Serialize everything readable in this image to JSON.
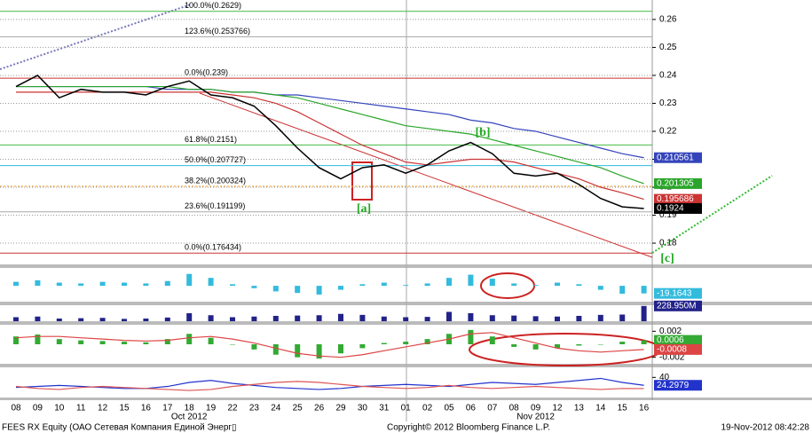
{
  "chart_data": [
    {
      "type": "line",
      "categories": [
        "08",
        "09",
        "10",
        "11",
        "12",
        "15",
        "16",
        "17",
        "18",
        "19",
        "22",
        "23",
        "24",
        "25",
        "26",
        "29",
        "30",
        "31",
        "01",
        "02",
        "05",
        "06",
        "07",
        "08",
        "09",
        "12",
        "13",
        "14",
        "15",
        "16"
      ],
      "months": [
        "Oct 2012",
        "Nov 2012"
      ],
      "ylim": [
        0.1724,
        0.266
      ],
      "yticks": [
        0.18,
        0.19,
        0.2,
        0.21,
        0.22,
        0.23,
        0.24,
        0.25,
        0.26
      ],
      "grid": true,
      "series": [
        {
          "color": "#3344bb",
          "tag": true,
          "values": [
            0.236,
            0.236,
            0.236,
            0.236,
            0.236,
            0.236,
            0.236,
            0.235,
            0.235,
            0.235,
            0.234,
            0.234,
            0.233,
            0.233,
            0.232,
            0.231,
            0.23,
            0.229,
            0.228,
            0.227,
            0.226,
            0.224,
            0.223,
            0.221,
            0.22,
            0.218,
            0.216,
            0.214,
            0.212,
            0.210561
          ]
        },
        {
          "color": "#2aa52a",
          "tag": true,
          "values": [
            0.236,
            0.236,
            0.236,
            0.236,
            0.236,
            0.236,
            0.236,
            0.236,
            0.235,
            0.235,
            0.234,
            0.234,
            0.233,
            0.232,
            0.23,
            0.228,
            0.226,
            0.224,
            0.222,
            0.221,
            0.22,
            0.219,
            0.217,
            0.215,
            0.213,
            0.211,
            0.209,
            0.207,
            0.204,
            0.201305
          ]
        },
        {
          "color": "#cc3333",
          "tag": true,
          "values": [
            0.234,
            0.234,
            0.234,
            0.234,
            0.234,
            0.234,
            0.234,
            0.234,
            0.234,
            0.234,
            0.233,
            0.232,
            0.23,
            0.227,
            0.223,
            0.219,
            0.215,
            0.212,
            0.209,
            0.208,
            0.209,
            0.21,
            0.21,
            0.209,
            0.207,
            0.205,
            0.203,
            0.2,
            0.198,
            0.195686
          ]
        },
        {
          "color": "#000000",
          "tag": true,
          "values": [
            0.236,
            0.24,
            0.232,
            0.235,
            0.234,
            0.234,
            0.233,
            0.236,
            0.238,
            0.233,
            0.232,
            0.229,
            0.222,
            0.214,
            0.207,
            0.203,
            0.207,
            0.208,
            0.205,
            0.208,
            0.213,
            0.216,
            0.212,
            0.205,
            0.204,
            0.205,
            0.201,
            0.196,
            0.193,
            0.1924
          ]
        }
      ],
      "levels": [
        {
          "value": 0.2629,
          "label": "100.0%(0.2629)",
          "color": "#44bb44"
        },
        {
          "value": 0.253766,
          "label": "123.6%(0.253766)",
          "color": "#aaaaaa"
        },
        {
          "value": 0.239,
          "label": "0.0%(0.239)",
          "color": "#cc3333"
        },
        {
          "value": 0.2151,
          "label": "61.8%(0.2151)",
          "color": "#44bb44"
        },
        {
          "value": 0.207727,
          "label": "50.0%(0.207727)",
          "color": "#33bbdd"
        },
        {
          "value": 0.200324,
          "label": "38.2%(0.200324)",
          "color": "#ee9922"
        },
        {
          "value": 0.191199,
          "label": "23.6%(0.191199)",
          "color": "#aaaaaa"
        },
        {
          "value": 0.176434,
          "label": "0.0%(0.176434)",
          "color": "#cc3333"
        }
      ],
      "annotations": [
        "[a]",
        "[b]",
        "[c]"
      ]
    },
    {
      "type": "bar",
      "ylim": [
        -40,
        45
      ],
      "series": [
        {
          "color": "#33bbdd",
          "type": "bar",
          "tag": true,
          "values": [
            10,
            14,
            8,
            6,
            10,
            8,
            6,
            12,
            30,
            20,
            4,
            -6,
            -14,
            -18,
            -22,
            -10,
            4,
            8,
            2,
            6,
            20,
            28,
            18,
            6,
            2,
            8,
            4,
            -10,
            -20,
            -19.1643
          ]
        }
      ]
    },
    {
      "type": "bar",
      "ylim": [
        0,
        240
      ],
      "series": [
        {
          "color": "#22228a",
          "type": "bar",
          "tag": true,
          "values": [
            60,
            70,
            40,
            45,
            50,
            35,
            40,
            55,
            120,
            90,
            60,
            70,
            80,
            85,
            90,
            110,
            95,
            70,
            60,
            65,
            140,
            120,
            90,
            85,
            75,
            70,
            80,
            95,
            100,
            228.95
          ],
          "value_labels": [
            null,
            null,
            null,
            null,
            null,
            null,
            null,
            null,
            null,
            null,
            null,
            null,
            null,
            null,
            null,
            null,
            null,
            null,
            null,
            null,
            null,
            null,
            null,
            null,
            null,
            null,
            null,
            null,
            null,
            "228.950M"
          ]
        }
      ]
    },
    {
      "type": "bar",
      "ylim": [
        -0.003,
        0.003
      ],
      "yticks": [
        0.002,
        -0.002
      ],
      "series": [
        {
          "color": "#33aa33",
          "type": "bar",
          "tag": true,
          "values": [
            0.0012,
            0.0015,
            0.0008,
            0.0006,
            0.0005,
            0.0004,
            0.0003,
            0.0008,
            0.0016,
            0.001,
            0,
            -0.0008,
            -0.0016,
            -0.002,
            -0.0022,
            -0.0014,
            -0.0006,
            0.0002,
            0.0004,
            0.0008,
            0.0016,
            0.0022,
            0.0012,
            -0.0004,
            -0.0008,
            -0.0006,
            -0.0002,
            0,
            0.0004,
            0.0006
          ]
        },
        {
          "color": "#dd4444",
          "type": "line",
          "tag": true,
          "values": [
            0.001,
            0.0012,
            0.0012,
            0.001,
            0.0008,
            0.0006,
            0.0005,
            0.0006,
            0.001,
            0.0012,
            0.0008,
            0.0002,
            -0.0006,
            -0.0014,
            -0.0018,
            -0.002,
            -0.0016,
            -0.001,
            -0.0004,
            0.0002,
            0.0008,
            0.0016,
            0.0018,
            0.001,
            0.0002,
            -0.0006,
            -0.001,
            -0.0012,
            -0.001,
            -0.0008
          ]
        }
      ]
    },
    {
      "type": "line",
      "ylim": [
        0,
        60
      ],
      "yticks": [
        40
      ],
      "series": [
        {
          "color": "#2233cc",
          "type": "line",
          "tag": true,
          "values": [
            20,
            22,
            24,
            22,
            20,
            18,
            18,
            22,
            30,
            34,
            28,
            24,
            20,
            18,
            16,
            18,
            22,
            24,
            26,
            24,
            22,
            26,
            30,
            28,
            26,
            30,
            34,
            38,
            30,
            24.2979
          ]
        },
        {
          "color": "#dd5555",
          "type": "line",
          "values": [
            22,
            18,
            16,
            20,
            22,
            20,
            18,
            16,
            14,
            16,
            22,
            26,
            30,
            32,
            30,
            26,
            22,
            20,
            18,
            20,
            24,
            20,
            18,
            20,
            22,
            20,
            18,
            16,
            18,
            17.7783
          ]
        }
      ]
    }
  ],
  "footer": {
    "security": "FEES RX Equity (ОАО Сетевая Компания Единой Энерг▯",
    "copyright": "Copyright© 2012 Bloomberg Finance L.P.",
    "timestamp": "19-Nov-2012 08:42:28"
  }
}
